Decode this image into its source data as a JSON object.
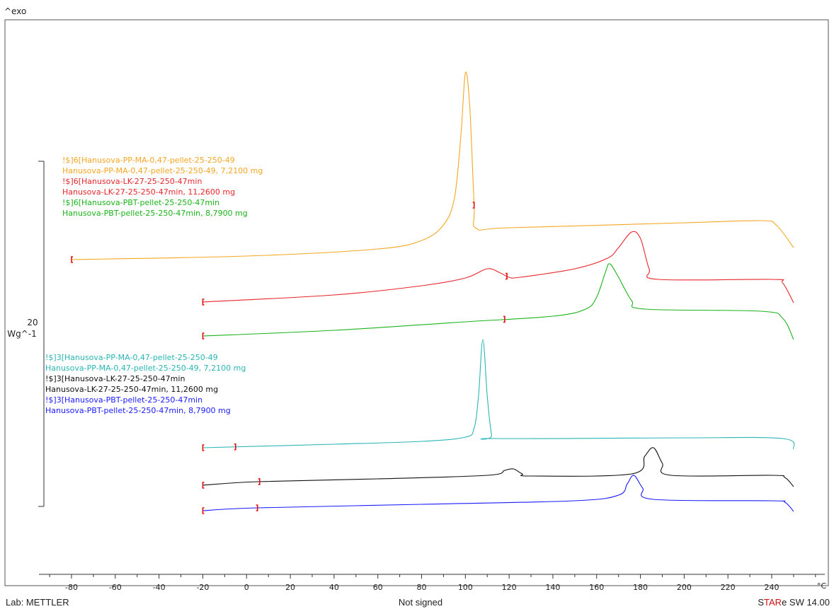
{
  "chart_data": {
    "type": "line",
    "y_axis_label": "^exo",
    "y_scale_value": "20",
    "y_scale_unit": "Wg^-1",
    "x_unit": "°C",
    "x_ticks": [
      -80,
      -60,
      -40,
      -20,
      0,
      20,
      40,
      60,
      80,
      100,
      120,
      140,
      160,
      180,
      200,
      220,
      240
    ],
    "xlim": [
      -95,
      262
    ],
    "legend_groups": [
      {
        "entries": [
          {
            "line1": "!$]6[Hanusova-PP-MA-0,47-pellet-25-250-49",
            "line2": "Hanusova-PP-MA-0,47-pellet-25-250-49, 7,2100 mg",
            "color": "#f5a623"
          },
          {
            "line1": "!$]6[Hanusova-LK-27-25-250-47min",
            "line2": "Hanusova-LK-27-25-250-47min, 11,2600 mg",
            "color": "#e8262b"
          },
          {
            "line1": "!$]6[Hanusova-PBT-pellet-25-250-47min",
            "line2": "Hanusova-PBT-pellet-25-250-47min, 8,7900 mg",
            "color": "#1bb31b"
          }
        ]
      },
      {
        "entries": [
          {
            "line1": "!$]3[Hanusova-PP-MA-0,47-pellet-25-250-49",
            "line2": "Hanusova-PP-MA-0,47-pellet-25-250-49, 7,2100 mg",
            "color": "#2ab5b5"
          },
          {
            "line1": "!$]3[Hanusova-LK-27-25-250-47min",
            "line2": "Hanusova-LK-27-25-250-47min, 11,2600 mg",
            "color": "#111111"
          },
          {
            "line1": "!$]3[Hanusova-PBT-pellet-25-250-47min",
            "line2": "Hanusova-PBT-pellet-25-250-47min, 8,7900 mg",
            "color": "#1a1aff"
          }
        ]
      }
    ],
    "series": [
      {
        "id": "pp6",
        "color": "#f5a623",
        "x_start": -80,
        "points": [
          [
            -80,
            367
          ],
          [
            0,
            362
          ],
          [
            60,
            352
          ],
          [
            80,
            340
          ],
          [
            90,
            318
          ],
          [
            95,
            280
          ],
          [
            98,
            190
          ],
          [
            100,
            103
          ],
          [
            102,
            150
          ],
          [
            104,
            290
          ],
          [
            105,
            323
          ],
          [
            120,
            322
          ],
          [
            200,
            315
          ],
          [
            235,
            312
          ],
          [
            242,
            318
          ],
          [
            250,
            350
          ]
        ],
        "markers": [
          -80,
          104
        ]
      },
      {
        "id": "lk6",
        "color": "#e8262b",
        "points": [
          [
            -20,
            427
          ],
          [
            40,
            417
          ],
          [
            80,
            404
          ],
          [
            100,
            393
          ],
          [
            110,
            380
          ],
          [
            116,
            386
          ],
          [
            120,
            392
          ],
          [
            125,
            392
          ],
          [
            150,
            380
          ],
          [
            165,
            365
          ],
          [
            170,
            350
          ],
          [
            176,
            328
          ],
          [
            180,
            337
          ],
          [
            184,
            380
          ],
          [
            188,
            395
          ],
          [
            240,
            395
          ],
          [
            245,
            400
          ],
          [
            250,
            428
          ]
        ],
        "markers": [
          -20,
          119
        ]
      },
      {
        "id": "pbt6",
        "color": "#1bb31b",
        "points": [
          [
            -20,
            475
          ],
          [
            40,
            467
          ],
          [
            100,
            455
          ],
          [
            140,
            447
          ],
          [
            155,
            437
          ],
          [
            160,
            420
          ],
          [
            164,
            385
          ],
          [
            166,
            373
          ],
          [
            170,
            392
          ],
          [
            176,
            425
          ],
          [
            182,
            437
          ],
          [
            235,
            440
          ],
          [
            245,
            450
          ],
          [
            250,
            480
          ]
        ],
        "markers": [
          -20,
          118
        ]
      },
      {
        "id": "pp3",
        "color": "#2ab5b5",
        "points": [
          [
            -20,
            633
          ],
          [
            40,
            628
          ],
          [
            80,
            624
          ],
          [
            100,
            618
          ],
          [
            104,
            605
          ],
          [
            106,
            560
          ],
          [
            108,
            480
          ],
          [
            110,
            560
          ],
          [
            112,
            615
          ],
          [
            114,
            620
          ],
          [
            200,
            619
          ],
          [
            245,
            620
          ],
          [
            250,
            635
          ]
        ],
        "markers": [
          -20,
          -5
        ]
      },
      {
        "id": "lk3",
        "color": "#111111",
        "points": [
          [
            -20,
            686
          ],
          [
            5,
            681
          ],
          [
            60,
            677
          ],
          [
            110,
            672
          ],
          [
            118,
            665
          ],
          [
            122,
            663
          ],
          [
            126,
            670
          ],
          [
            130,
            673
          ],
          [
            176,
            670
          ],
          [
            182,
            645
          ],
          [
            186,
            633
          ],
          [
            190,
            655
          ],
          [
            194,
            672
          ],
          [
            240,
            672
          ],
          [
            246,
            675
          ],
          [
            250,
            688
          ]
        ],
        "markers": [
          -20,
          6
        ]
      },
      {
        "id": "pbt3",
        "color": "#1a1aff",
        "points": [
          [
            -20,
            722
          ],
          [
            5,
            718
          ],
          [
            80,
            713
          ],
          [
            150,
            708
          ],
          [
            170,
            700
          ],
          [
            174,
            684
          ],
          [
            177,
            672
          ],
          [
            181,
            690
          ],
          [
            186,
            706
          ],
          [
            240,
            708
          ],
          [
            246,
            710
          ],
          [
            250,
            723
          ]
        ],
        "markers": [
          -20,
          5
        ]
      }
    ]
  },
  "footer": {
    "lab": "Lab: METTLER",
    "signature": "Not signed",
    "software_prefix": "S",
    "software_highlight": "TAR",
    "software_suffix": "e SW 14.00"
  }
}
